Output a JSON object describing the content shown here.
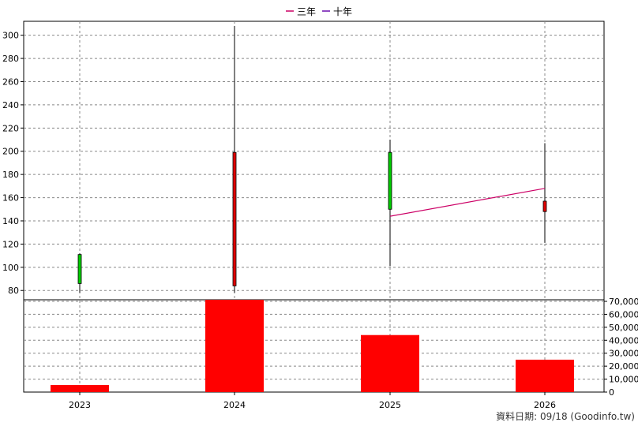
{
  "chart_data": {
    "type": "candlestick+bar",
    "legend": [
      {
        "name": "三年",
        "color": "#cc0066"
      },
      {
        "name": "十年",
        "color": "#6a0dad"
      }
    ],
    "x_categories": [
      "2023",
      "2024",
      "2025",
      "2026"
    ],
    "price_axis": {
      "ylim": [
        72,
        312
      ],
      "ticks": [
        80,
        100,
        120,
        140,
        160,
        180,
        200,
        220,
        240,
        260,
        280,
        300
      ]
    },
    "volume_axis": {
      "ylim": [
        0,
        70000
      ],
      "ticks": [
        "0",
        "10,000",
        "20,000",
        "30,000",
        "40,000",
        "50,000",
        "60,000",
        "70,000"
      ],
      "tick_values": [
        0,
        10000,
        20000,
        30000,
        40000,
        50000,
        60000,
        70000
      ]
    },
    "candles": [
      {
        "year": "2023",
        "open": 86,
        "close": 111,
        "high": 112,
        "low": 78,
        "color": "#00cc00"
      },
      {
        "year": "2024",
        "open": 199,
        "close": 84,
        "high": 308,
        "low": 78,
        "color": "#e00000"
      },
      {
        "year": "2025",
        "open": 150,
        "close": 199,
        "high": 210,
        "low": 101,
        "color": "#00cc00"
      },
      {
        "year": "2026",
        "open": 157,
        "close": 148,
        "high": 207,
        "low": 121,
        "color": "#e00000"
      }
    ],
    "volume": [
      {
        "year": "2023",
        "value": 5500
      },
      {
        "year": "2024",
        "value": 73000
      },
      {
        "year": "2025",
        "value": 44000
      },
      {
        "year": "2026",
        "value": 25000
      }
    ],
    "ma_three_year": [
      {
        "year": "2025",
        "value": 144
      },
      {
        "year": "2026",
        "value": 168
      }
    ],
    "colors": {
      "volume_bar": "#ff0000",
      "grid": "#888888",
      "candle_up": "#00cc00",
      "candle_down": "#e00000",
      "ma_line": "#cc0066"
    }
  },
  "source_note": "資料日期: 09/18  (Goodinfo.tw)"
}
